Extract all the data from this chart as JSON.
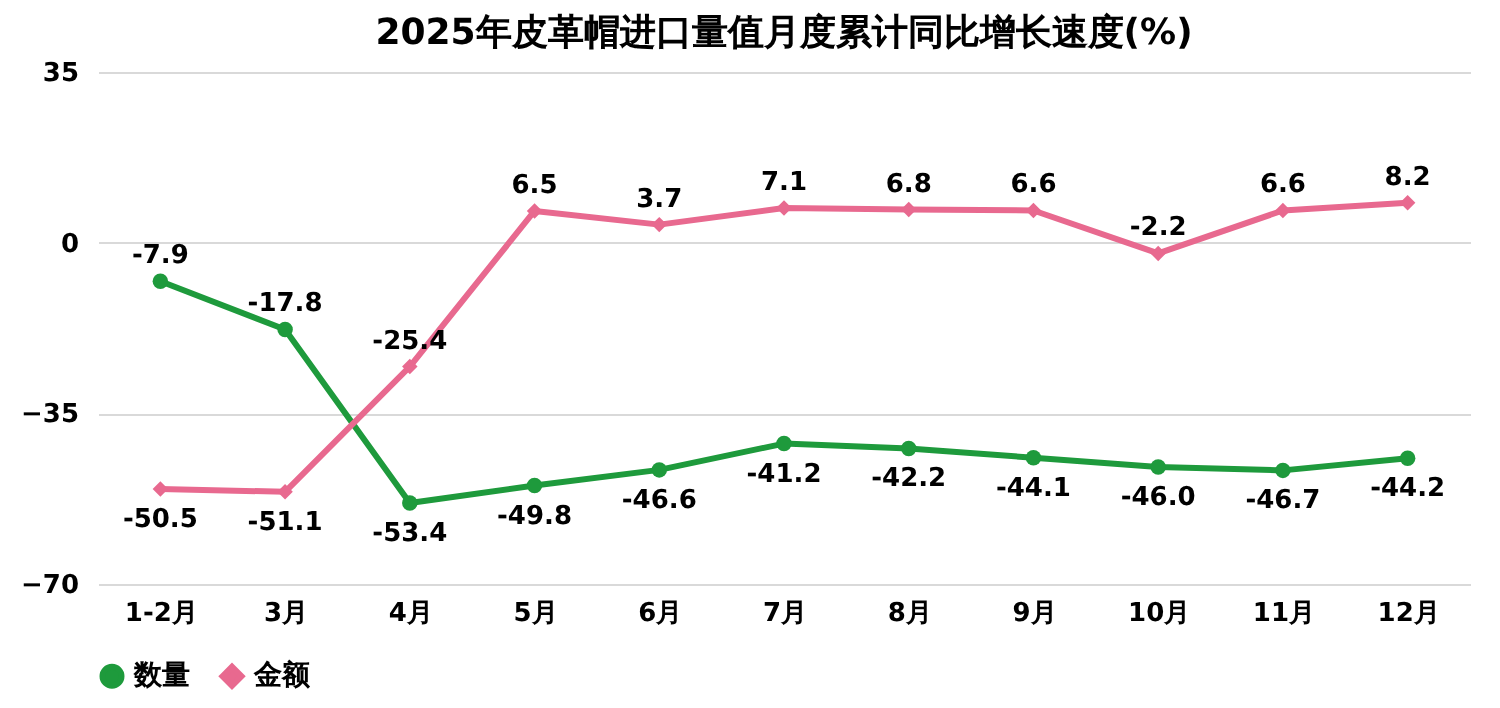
{
  "chart_data": {
    "type": "line",
    "title": "2025年皮革帽进口量值月度累计同比增长速度(%)",
    "categories": [
      "1-2月",
      "3月",
      "4月",
      "5月",
      "6月",
      "7月",
      "8月",
      "9月",
      "10月",
      "11月",
      "12月"
    ],
    "series": [
      {
        "name": "数量",
        "color": "#1e9a3c",
        "marker": "circle",
        "values": [
          -7.9,
          -17.8,
          -53.4,
          -49.8,
          -46.6,
          -41.2,
          -42.2,
          -44.1,
          -46.0,
          -46.7,
          -44.2
        ],
        "value_labels": [
          "-7.9",
          "-17.8",
          "-53.4",
          "-49.8",
          "-46.6",
          "-41.2",
          "-42.2",
          "-44.1",
          "-46.0",
          "-46.7",
          "-44.2"
        ]
      },
      {
        "name": "金额",
        "color": "#e8698f",
        "marker": "diamond",
        "values": [
          -50.5,
          -51.1,
          -25.4,
          6.5,
          3.7,
          7.1,
          6.8,
          6.6,
          -2.2,
          6.6,
          8.2
        ],
        "value_labels": [
          "-50.5",
          "-51.1",
          "-25.4",
          "6.5",
          "3.7",
          "7.1",
          "6.8",
          "6.6",
          "-2.2",
          "6.6",
          "8.2"
        ]
      }
    ],
    "ylim": [
      -70,
      35
    ],
    "yticks": [
      -70,
      -35,
      0,
      35
    ],
    "grid": "y",
    "legend": "bottom",
    "line_style": "solid"
  }
}
